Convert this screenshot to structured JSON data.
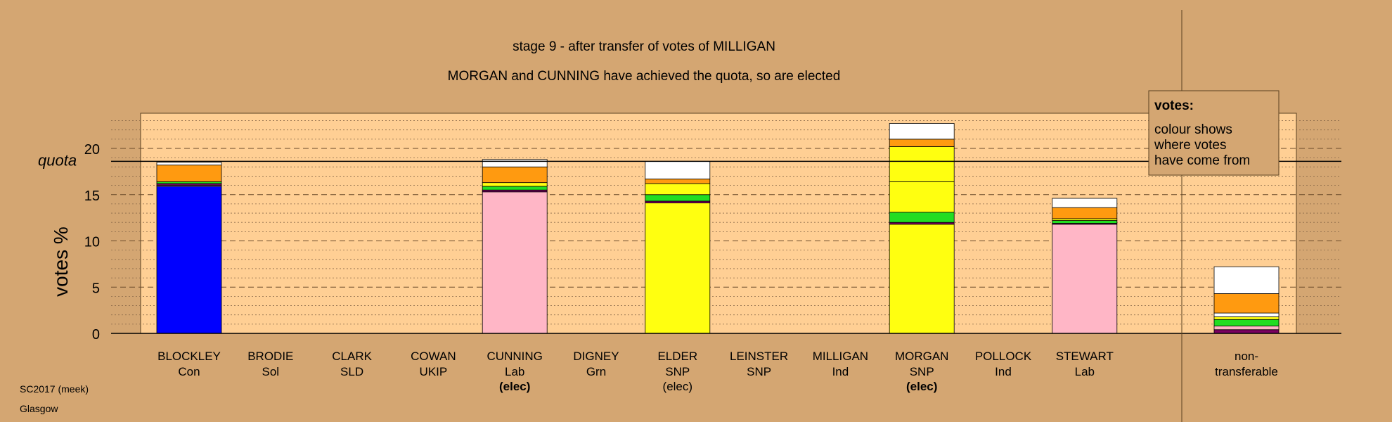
{
  "chart_data": {
    "type": "bar",
    "title": "stage 9 - after transfer of votes of MILLIGAN",
    "subtitle": "MORGAN and CUNNING have achieved the quota, so are elected",
    "ylabel": "votes %",
    "quota_label": "quota",
    "quota_value": 18.6,
    "ylim": [
      0,
      24
    ],
    "yticks": [
      0,
      5,
      10,
      15,
      20
    ],
    "grid": true,
    "legend": {
      "title": "votes:",
      "lines": [
        "colour shows",
        "where votes",
        "have come from"
      ],
      "placement": "top-right"
    },
    "footer": {
      "line1": "SC2017 (meek)",
      "line2": "Glasgow"
    },
    "candidates": [
      {
        "name": "BLOCKLEY",
        "party": "Con",
        "status": "",
        "bold": false,
        "segments": [
          {
            "color": "#0000ff",
            "value": 15.9
          },
          {
            "color": "#ffb6c6",
            "value": 0.1
          },
          {
            "color": "#7a0060",
            "value": 0.2
          },
          {
            "color": "#22dd22",
            "value": 0.2
          },
          {
            "color": "#ff9a10",
            "value": 1.8
          },
          {
            "color": "#ffffff",
            "value": 0.3
          }
        ]
      },
      {
        "name": "BRODIE",
        "party": "Sol",
        "status": "",
        "bold": false,
        "segments": []
      },
      {
        "name": "CLARK",
        "party": "SLD",
        "status": "",
        "bold": false,
        "segments": []
      },
      {
        "name": "COWAN",
        "party": "UKIP",
        "status": "",
        "bold": false,
        "segments": []
      },
      {
        "name": "CUNNING",
        "party": "Lab",
        "status": "(elec)",
        "bold": true,
        "segments": [
          {
            "color": "#ffb6c6",
            "value": 15.3
          },
          {
            "color": "#7a0060",
            "value": 0.2
          },
          {
            "color": "#22dd22",
            "value": 0.4
          },
          {
            "color": "#ffff10",
            "value": 0.4
          },
          {
            "color": "#ff9a10",
            "value": 1.7
          },
          {
            "color": "#ffffff",
            "value": 0.8
          }
        ]
      },
      {
        "name": "DIGNEY",
        "party": "Grn",
        "status": "",
        "bold": false,
        "segments": []
      },
      {
        "name": "ELDER",
        "party": "SNP",
        "status": "(elec)",
        "bold": false,
        "segments": [
          {
            "color": "#ffff10",
            "value": 14.1
          },
          {
            "color": "#7a0060",
            "value": 0.2
          },
          {
            "color": "#22dd22",
            "value": 0.7
          },
          {
            "color": "#ffff10",
            "value": 1.2
          },
          {
            "color": "#ff9a10",
            "value": 0.5
          },
          {
            "color": "#ffffff",
            "value": 1.9
          }
        ]
      },
      {
        "name": "LEINSTER",
        "party": "SNP",
        "status": "",
        "bold": false,
        "segments": []
      },
      {
        "name": "MILLIGAN",
        "party": "Ind",
        "status": "",
        "bold": false,
        "segments": []
      },
      {
        "name": "MORGAN",
        "party": "SNP",
        "status": "(elec)",
        "bold": true,
        "segments": [
          {
            "color": "#ffff10",
            "value": 11.8
          },
          {
            "color": "#7a0060",
            "value": 0.2
          },
          {
            "color": "#22dd22",
            "value": 1.1
          },
          {
            "color": "#ffff10",
            "value": 3.3
          },
          {
            "color": "#ffff10",
            "value": 3.8
          },
          {
            "color": "#ff9a10",
            "value": 0.8
          },
          {
            "color": "#ffffff",
            "value": 1.7
          }
        ]
      },
      {
        "name": "POLLOCK",
        "party": "Ind",
        "status": "",
        "bold": false,
        "segments": []
      },
      {
        "name": "STEWART",
        "party": "Lab",
        "status": "",
        "bold": false,
        "segments": [
          {
            "color": "#ffb6c6",
            "value": 11.8
          },
          {
            "color": "#7a0060",
            "value": 0.1
          },
          {
            "color": "#22dd22",
            "value": 0.3
          },
          {
            "color": "#ffff10",
            "value": 0.2
          },
          {
            "color": "#ff9a10",
            "value": 1.2
          },
          {
            "color": "#ffffff",
            "value": 1.0
          }
        ]
      }
    ],
    "nontransferable": {
      "label_line1": "non-",
      "label_line2": "transferable",
      "segments": [
        {
          "color": "#7a0060",
          "value": 0.4
        },
        {
          "color": "#ffb6c6",
          "value": 0.4
        },
        {
          "color": "#22dd22",
          "value": 0.7
        },
        {
          "color": "#ffff10",
          "value": 0.3
        },
        {
          "color": "#ffffff",
          "value": 0.4
        },
        {
          "color": "#ff9a10",
          "value": 2.1
        },
        {
          "color": "#ffffff",
          "value": 2.9
        }
      ]
    },
    "colors": {
      "background": "#d4a672",
      "plot_area": "#ffcf94"
    }
  }
}
